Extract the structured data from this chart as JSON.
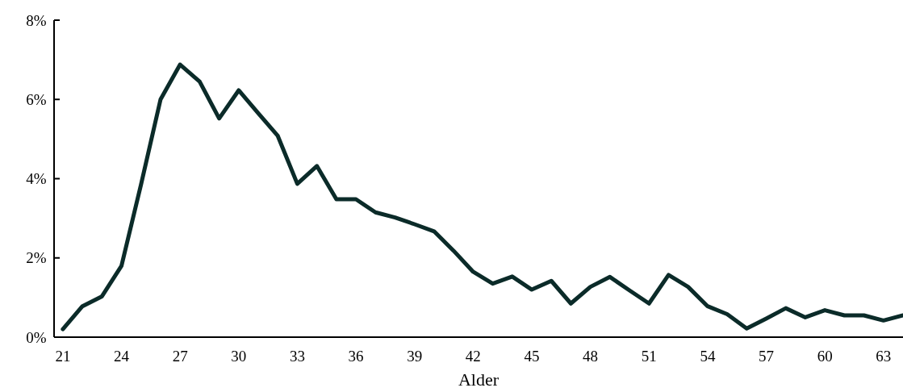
{
  "chart_data": {
    "type": "line",
    "xlabel": "Alder",
    "x": [
      21,
      22,
      23,
      24,
      25,
      26,
      27,
      28,
      29,
      30,
      31,
      32,
      33,
      34,
      35,
      36,
      37,
      38,
      39,
      40,
      41,
      42,
      43,
      44,
      45,
      46,
      47,
      48,
      49,
      50,
      51,
      52,
      53,
      54,
      55,
      56,
      57,
      58,
      59,
      60,
      61,
      62,
      63,
      64
    ],
    "series": [
      {
        "color": "#0b2b29",
        "values": [
          0.2,
          0.78,
          1.03,
          1.8,
          3.85,
          6.0,
          6.88,
          6.45,
          5.52,
          6.23,
          5.65,
          5.08,
          3.87,
          4.32,
          3.48,
          3.48,
          3.15,
          3.02,
          2.85,
          2.67,
          2.18,
          1.65,
          1.35,
          1.53,
          1.2,
          1.42,
          0.85,
          1.27,
          1.52,
          1.18,
          0.85,
          1.57,
          1.27,
          0.78,
          0.58,
          0.22,
          0.47,
          0.73,
          0.5,
          0.68,
          0.55,
          0.55,
          0.42,
          0.55
        ]
      }
    ],
    "xlim": [
      20.55,
      64
    ],
    "xticks": [
      21,
      24,
      27,
      30,
      33,
      36,
      39,
      42,
      45,
      48,
      51,
      54,
      57,
      60,
      63
    ],
    "ylim": [
      0,
      8
    ],
    "yticks": [
      {
        "value": 0,
        "label": "0%"
      },
      {
        "value": 2,
        "label": "2%"
      },
      {
        "value": 4,
        "label": "4%"
      },
      {
        "value": 6,
        "label": "6%"
      },
      {
        "value": 8,
        "label": "8%"
      }
    ],
    "grid": false,
    "marker": "none",
    "line_style": "solid"
  }
}
